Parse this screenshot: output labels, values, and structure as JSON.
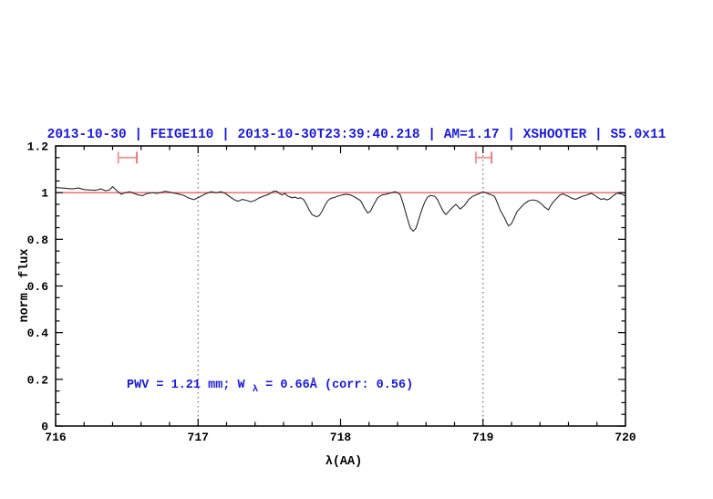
{
  "figure": {
    "title": "2013-10-30 | FEIGE110 | 2013-10-30T23:39:40.218 | AM=1.17 | XSHOOTER | S5.0x11",
    "colors": {
      "title": "#1a1ade",
      "annotation": "#1a1ade",
      "reference_line": "#f06060",
      "range_marker": "#f29a9a",
      "range_marker_cap": "#e87f7f",
      "spectrum": "#2a2a2a",
      "axis": "#000000",
      "dotted_line": "#555555",
      "background": "#ffffff"
    }
  },
  "chart_data": {
    "type": "line",
    "title": "2013-10-30 | FEIGE110 | 2013-10-30T23:39:40.218 | AM=1.17 | XSHOOTER | S5.0x11",
    "xlabel": "λ(AA)",
    "ylabel": "norm. flux",
    "xlim": [
      716,
      720
    ],
    "ylim": [
      0,
      1.2
    ],
    "grid": false,
    "x_ticks": {
      "major": [
        716,
        717,
        718,
        719,
        720
      ],
      "labels": [
        "716",
        "717",
        "718",
        "719",
        "720"
      ],
      "minor_step": 0.2
    },
    "y_ticks": {
      "major": [
        0,
        0.2,
        0.4,
        0.6,
        0.8,
        1,
        1.2
      ],
      "labels": [
        "0",
        "0.2",
        "0.4",
        "0.6",
        "0.8",
        "1",
        "1.2"
      ],
      "minor_step": 0.05
    },
    "reference_line_y": 1.0,
    "dotted_vlines_x": [
      717,
      719
    ],
    "range_markers": [
      {
        "x_from": 716.44,
        "x_to": 716.57,
        "y": 1.15
      },
      {
        "x_from": 718.95,
        "x_to": 719.06,
        "y": 1.15
      }
    ],
    "annotation": {
      "prefix": "PWV = 1.21 mm; W",
      "sub": "λ",
      "suffix": " = 0.66Å (corr: 0.56)",
      "x": 716.5,
      "y": 0.185
    },
    "series": [
      {
        "name": "normalized spectrum",
        "x": [
          716.0,
          716.04,
          716.08,
          716.12,
          716.16,
          716.2,
          716.24,
          716.28,
          716.32,
          716.35,
          716.38,
          716.4,
          716.43,
          716.46,
          716.49,
          716.52,
          716.55,
          716.58,
          716.61,
          716.64,
          716.68,
          716.71,
          716.74,
          716.77,
          716.81,
          716.84,
          716.87,
          716.9,
          716.93,
          716.97,
          717.0,
          717.03,
          717.06,
          717.09,
          717.13,
          717.16,
          717.19,
          717.22,
          717.25,
          717.28,
          717.31,
          717.34,
          717.37,
          717.4,
          717.43,
          717.46,
          717.5,
          717.53,
          717.55,
          717.57,
          717.59,
          717.61,
          717.63,
          717.66,
          717.68,
          717.7,
          717.72,
          717.74,
          717.76,
          717.78,
          717.8,
          717.83,
          717.85,
          717.87,
          717.89,
          717.91,
          717.93,
          717.96,
          717.98,
          718.01,
          718.04,
          718.07,
          718.1,
          718.14,
          718.17,
          718.19,
          718.21,
          718.23,
          718.26,
          718.29,
          718.32,
          718.36,
          718.38,
          718.4,
          718.42,
          718.44,
          718.47,
          718.49,
          718.51,
          718.53,
          718.55,
          718.57,
          718.59,
          718.61,
          718.63,
          718.66,
          718.68,
          718.7,
          718.72,
          718.74,
          718.76,
          718.79,
          718.81,
          718.84,
          718.87,
          718.9,
          718.93,
          718.97,
          719.0,
          719.03,
          719.06,
          719.08,
          719.1,
          719.12,
          719.15,
          719.17,
          719.18,
          719.2,
          719.22,
          719.24,
          719.27,
          719.29,
          719.32,
          719.35,
          719.38,
          719.41,
          719.43,
          719.46,
          719.47,
          719.49,
          719.52,
          719.54,
          719.56,
          719.59,
          719.62,
          719.65,
          719.67,
          719.7,
          719.73,
          719.76,
          719.78,
          719.81,
          719.83,
          719.85,
          719.87,
          719.89,
          719.91,
          719.94,
          719.97,
          720.0
        ],
        "y": [
          1.022,
          1.02,
          1.018,
          1.016,
          1.02,
          1.013,
          1.011,
          1.01,
          1.016,
          1.008,
          1.012,
          1.026,
          1.008,
          0.993,
          1.0,
          1.004,
          0.997,
          0.99,
          0.987,
          0.996,
          1.0,
          0.997,
          1.001,
          1.006,
          1.001,
          0.997,
          0.993,
          0.988,
          0.978,
          0.97,
          0.978,
          0.988,
          0.997,
          1.004,
          1.0,
          1.004,
          0.997,
          0.984,
          0.971,
          0.963,
          0.971,
          0.967,
          0.961,
          0.967,
          0.978,
          0.985,
          0.994,
          1.006,
          1.007,
          0.997,
          0.99,
          0.997,
          0.985,
          0.978,
          0.981,
          0.975,
          0.978,
          0.971,
          0.951,
          0.926,
          0.906,
          0.897,
          0.901,
          0.92,
          0.945,
          0.965,
          0.975,
          0.98,
          0.985,
          0.99,
          0.993,
          0.99,
          0.981,
          0.966,
          0.932,
          0.913,
          0.92,
          0.945,
          0.978,
          0.99,
          0.993,
          1.0,
          1.004,
          1.0,
          0.99,
          0.952,
          0.887,
          0.848,
          0.835,
          0.848,
          0.887,
          0.926,
          0.958,
          0.98,
          0.988,
          0.985,
          0.971,
          0.945,
          0.92,
          0.906,
          0.92,
          0.939,
          0.95,
          0.93,
          0.945,
          0.971,
          0.985,
          0.995,
          1.004,
          0.997,
          0.99,
          0.985,
          0.958,
          0.926,
          0.893,
          0.867,
          0.857,
          0.867,
          0.893,
          0.92,
          0.939,
          0.952,
          0.965,
          0.969,
          0.965,
          0.952,
          0.939,
          0.926,
          0.939,
          0.958,
          0.977,
          0.99,
          0.995,
          0.987,
          0.977,
          0.971,
          0.977,
          0.985,
          0.99,
          0.997,
          0.99,
          0.977,
          0.971,
          0.974,
          0.969,
          0.974,
          0.985,
          0.998,
          0.995,
          0.985
        ]
      }
    ]
  }
}
